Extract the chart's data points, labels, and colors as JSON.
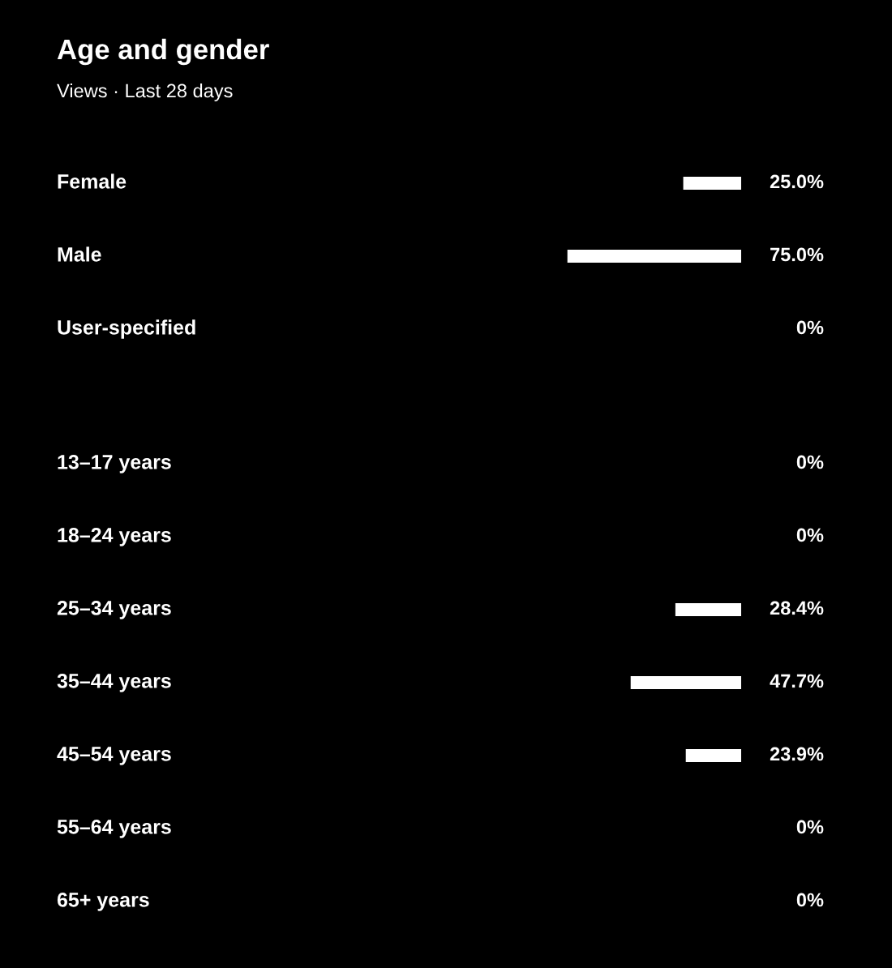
{
  "chart_data": [
    {
      "type": "bar",
      "orientation": "horizontal",
      "title": "Age and gender",
      "subtitle": "Views · Last 28 days",
      "categories": [
        "Female",
        "Male",
        "User-specified"
      ],
      "values": [
        25.0,
        75.0,
        0
      ],
      "value_labels": [
        "25.0%",
        "75.0%",
        "0%"
      ],
      "color": "#ffffff"
    },
    {
      "type": "bar",
      "orientation": "horizontal",
      "categories": [
        "13–17 years",
        "18–24 years",
        "25–34 years",
        "35–44 years",
        "45–54 years",
        "55–64 years",
        "65+ years"
      ],
      "values": [
        0,
        0,
        28.4,
        47.7,
        23.9,
        0,
        0
      ],
      "value_labels": [
        "0%",
        "0%",
        "28.4%",
        "47.7%",
        "23.9%",
        "0%",
        "0%"
      ],
      "color": "#ffffff"
    }
  ]
}
